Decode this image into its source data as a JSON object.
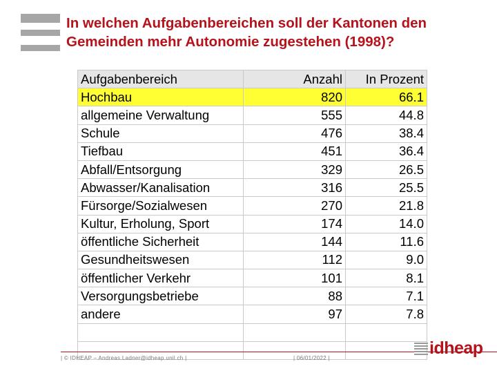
{
  "header": {
    "title": "In welchen Aufgabenbereichen soll der Kantonen den Gemeinden mehr Autonomie zugestehen (1998)?"
  },
  "table": {
    "columns": [
      "Aufgabenbereich",
      "Anzahl",
      "In Prozent"
    ],
    "rows": [
      [
        "Hochbau",
        "820",
        "66.1"
      ],
      [
        "allgemeine Verwaltung",
        "555",
        "44.8"
      ],
      [
        "Schule",
        "476",
        "38.4"
      ],
      [
        "Tiefbau",
        "451",
        "36.4"
      ],
      [
        "Abfall/Entsorgung",
        "329",
        "26.5"
      ],
      [
        "Abwasser/Kanalisation",
        "316",
        "25.5"
      ],
      [
        "Fürsorge/Sozialwesen",
        "270",
        "21.8"
      ],
      [
        "Kultur, Erholung, Sport",
        "174",
        "14.0"
      ],
      [
        "öffentliche Sicherheit",
        "144",
        "11.6"
      ],
      [
        "Gesundheitswesen",
        "112",
        "9.0"
      ],
      [
        "öffentlicher Verkehr",
        "101",
        "8.1"
      ],
      [
        "Versorgungsbetriebe",
        "88",
        "7.1"
      ],
      [
        "andere",
        "97",
        "7.8"
      ]
    ]
  },
  "footer": {
    "credit": "© IDHEAP – Andreas.Ladner@idheap.unil.ch",
    "date": "06/01/2022",
    "logo": "idheap"
  }
}
